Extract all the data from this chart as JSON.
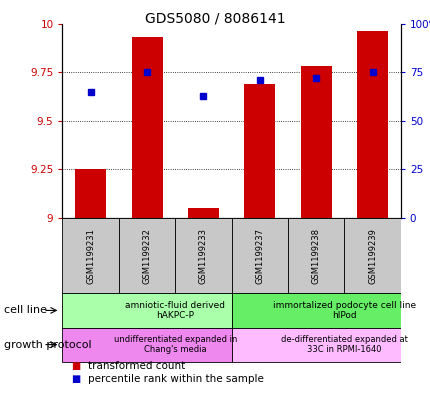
{
  "title": "GDS5080 / 8086141",
  "samples": [
    "GSM1199231",
    "GSM1199232",
    "GSM1199233",
    "GSM1199237",
    "GSM1199238",
    "GSM1199239"
  ],
  "transformed_count": [
    9.25,
    9.93,
    9.05,
    9.69,
    9.78,
    9.96
  ],
  "percentile_rank": [
    65,
    75,
    63,
    71,
    72,
    75
  ],
  "ylim_left": [
    9.0,
    10.0
  ],
  "ylim_right": [
    0,
    100
  ],
  "yticks_left": [
    9.0,
    9.25,
    9.5,
    9.75,
    10.0
  ],
  "yticks_right": [
    0,
    25,
    50,
    75,
    100
  ],
  "ytick_labels_left": [
    "9",
    "9.25",
    "9.5",
    "9.75",
    "10"
  ],
  "ytick_labels_right": [
    "0",
    "25",
    "50",
    "75",
    "100%"
  ],
  "bar_color": "#cc0000",
  "dot_color": "#0000cc",
  "bar_bottom": 9.0,
  "bar_width": 0.55,
  "cell_line_groups": [
    {
      "label": "amniotic-fluid derived\nhAKPC-P",
      "start": 0,
      "end": 3,
      "color": "#aaffaa"
    },
    {
      "label": "immortalized podocyte cell line\nhIPod",
      "start": 3,
      "end": 6,
      "color": "#66ee66"
    }
  ],
  "growth_protocol_groups": [
    {
      "label": "undifferentiated expanded in\nChang's media",
      "start": 0,
      "end": 3,
      "color": "#ee88ee"
    },
    {
      "label": "de-differentiated expanded at\n33C in RPMI-1640",
      "start": 3,
      "end": 6,
      "color": "#ffbbff"
    }
  ],
  "cell_line_label": "cell line",
  "growth_protocol_label": "growth protocol",
  "legend_red_label": "transformed count",
  "legend_blue_label": "percentile rank within the sample",
  "background_color": "#ffffff",
  "sample_box_color": "#c8c8c8",
  "title_fontsize": 10,
  "label_fontsize": 8,
  "tick_fontsize": 7.5,
  "annotation_fontsize": 6.5,
  "legend_fontsize": 7.5
}
